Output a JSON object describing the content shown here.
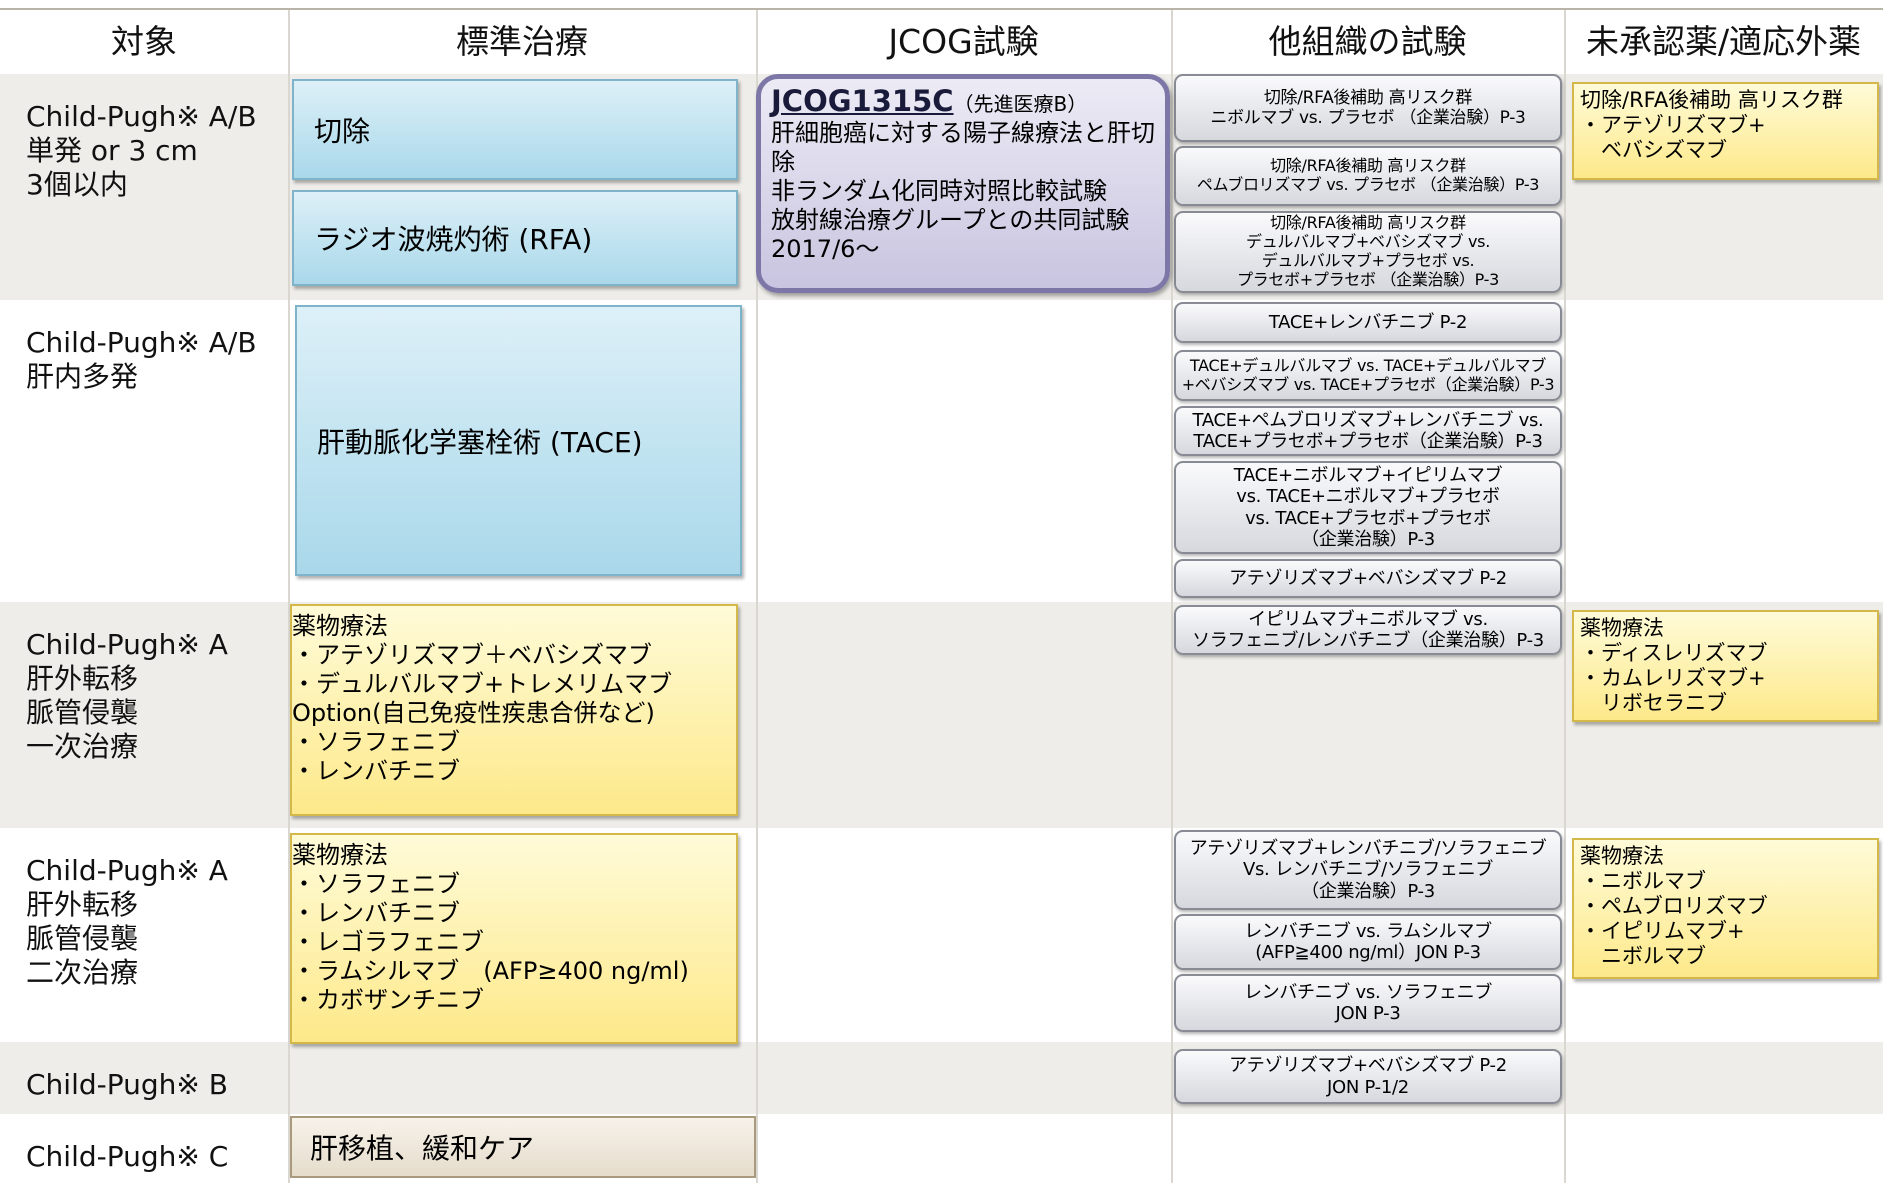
{
  "header": {
    "columns": [
      "対象",
      "標準治療",
      "JCOG試験",
      "他組織の試験",
      "未承認薬/適応外薬"
    ]
  },
  "rows": [
    {
      "subject": [
        "Child-Pugh※ A/B",
        "単発 or 3 cm",
        "3個以内"
      ],
      "standard": [
        [
          "切除"
        ],
        [
          "ラジオ波焼灼術 (RFA)"
        ]
      ],
      "trials": [
        [
          "切除/RFA後補助 高リスク群",
          "ニボルマブ vs. プラセボ （企業治験）P-3"
        ],
        [
          "切除/RFA後補助 高リスク群",
          "ペムブロリズマブ vs. プラセボ （企業治験）P-3"
        ],
        [
          "切除/RFA後補助 高リスク群",
          "デュルバルマブ+ベバシズマブ vs.",
          "デュルバルマブ+プラセボ vs.",
          "プラセボ+プラセボ （企業治験）P-3"
        ]
      ],
      "unapproved": [
        [
          "切除/RFA後補助 高リスク群",
          "・アテゾリズマブ+",
          "　ベバシズマブ"
        ]
      ]
    },
    {
      "subject": [
        "Child-Pugh※ A/B",
        "肝内多発"
      ],
      "standard": [
        [
          "肝動脈化学塞栓術 (TACE)"
        ]
      ],
      "trials": [
        [
          "TACE+レンバチニブ P-2"
        ],
        [
          "TACE+デュルバルマブ vs. TACE+デュルバルマブ",
          "+ベバシズマブ vs. TACE+プラセボ（企業治験）P-3"
        ],
        [
          "TACE+ペムブロリズマブ+レンバチニブ vs.",
          "TACE+プラセボ+プラセボ（企業治験）P-3"
        ],
        [
          "TACE+ニボルマブ+イピリムマブ",
          "vs. TACE+ニボルマブ+プラセボ",
          "vs. TACE+プラセボ+プラセボ",
          "（企業治験）P-3"
        ],
        [
          "アテゾリズマブ+ベバシズマブ P-2"
        ]
      ],
      "unapproved": []
    },
    {
      "subject": [
        "Child-Pugh※ A",
        "肝外転移",
        "脈管侵襲",
        "一次治療"
      ],
      "standard": [
        [
          "薬物療法",
          "・アテゾリズマブ＋ベバシズマブ",
          "・デュルバルマブ+トレメリムマブ",
          "Option(自己免疫性疾患合併など)",
          "・ソラフェニブ",
          "・レンバチニブ"
        ]
      ],
      "trials": [
        [
          "イピリムマブ+ニボルマブ vs.",
          "ソラフェニブ/レンバチニブ（企業治験）P-3"
        ]
      ],
      "unapproved": [
        [
          "薬物療法",
          "・ディスレリズマブ",
          "・カムレリズマブ+",
          "　リボセラニブ"
        ]
      ]
    },
    {
      "subject": [
        "Child-Pugh※ A",
        "肝外転移",
        "脈管侵襲",
        "二次治療"
      ],
      "standard": [
        [
          "薬物療法",
          "・ソラフェニブ",
          "・レンバチニブ",
          "・レゴラフェニブ",
          "・ラムシルマブ　(AFP≥400 ng/ml)",
          "・カボザンチニブ"
        ]
      ],
      "trials": [
        [
          "アテゾリズマブ+レンバチニブ/ソラフェニブ",
          "Vs. レンバチニブ/ソラフェニブ",
          "（企業治験）P-3"
        ],
        [
          "レンバチニブ vs. ラムシルマブ",
          "(AFP≧400 ng/ml）JON P-3"
        ],
        [
          "レンバチニブ vs. ソラフェニブ",
          "JON P-3"
        ]
      ],
      "unapproved": [
        [
          "薬物療法",
          "・ニボルマブ",
          "・ペムブロリズマブ",
          "・イピリムマブ+",
          "　ニボルマブ"
        ]
      ]
    },
    {
      "subject": [
        "Child-Pugh※ B"
      ],
      "standard": [],
      "trials": [
        [
          "アテゾリズマブ+ベバシズマブ P-2",
          "JON P-1/2"
        ]
      ],
      "unapproved": []
    },
    {
      "subject": [
        "Child-Pugh※ C"
      ],
      "standard": [
        [
          "肝移植、緩和ケア"
        ]
      ],
      "trials": [],
      "unapproved": []
    }
  ],
  "jcog": {
    "id": "JCOG1315C",
    "tag": "（先進医療B）",
    "lines": [
      "肝細胞癌に対する陽子線療法と肝切",
      "除",
      "非ランダム化同時対照比較試験",
      "放射線治療グループとの共同試験",
      "2017/6～"
    ]
  }
}
